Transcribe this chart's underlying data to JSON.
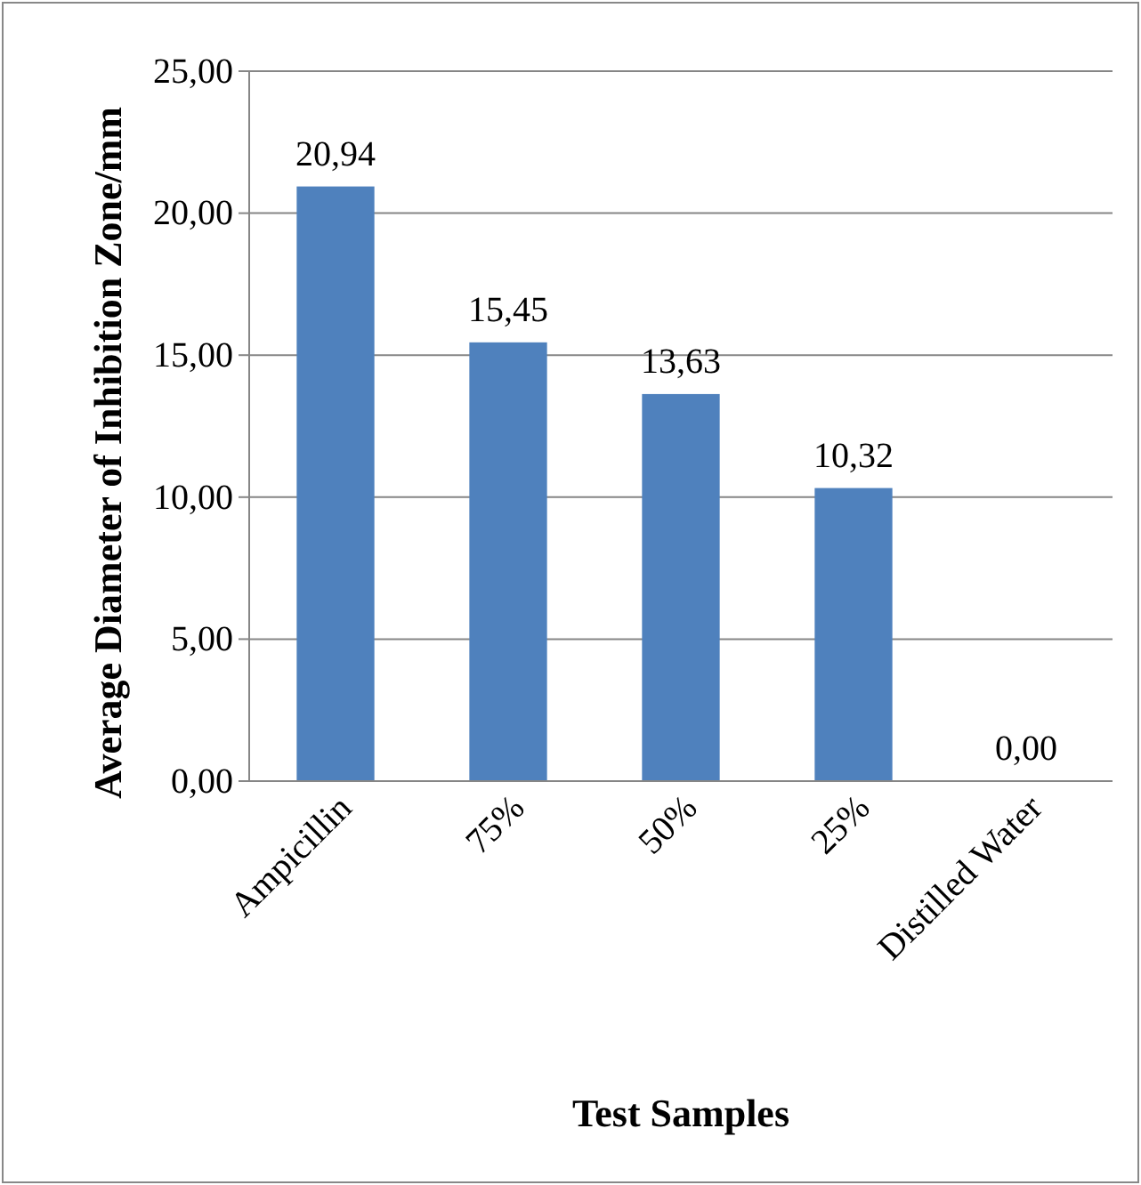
{
  "chart_data": {
    "type": "bar",
    "xlabel": "Test Samples",
    "ylabel": "Average Diameter of Inhibition Zone/mm",
    "categories": [
      "Ampicillin",
      "75%",
      "50%",
      "25%",
      "Distilled Water"
    ],
    "values": [
      20.94,
      15.45,
      13.63,
      10.32,
      0
    ],
    "value_labels": [
      "20,94",
      "15,45",
      "13,63",
      "10,32",
      "0,00"
    ],
    "color": "#4f81bd",
    "ylim": [
      0,
      25
    ],
    "yticks": [
      {
        "value": 0,
        "label": "0,00"
      },
      {
        "value": 5,
        "label": "5,00"
      },
      {
        "value": 10,
        "label": "10,00"
      },
      {
        "value": 15,
        "label": "15,00"
      },
      {
        "value": 20,
        "label": "20,00"
      },
      {
        "value": 25,
        "label": "25,00"
      }
    ],
    "grid": "y"
  }
}
